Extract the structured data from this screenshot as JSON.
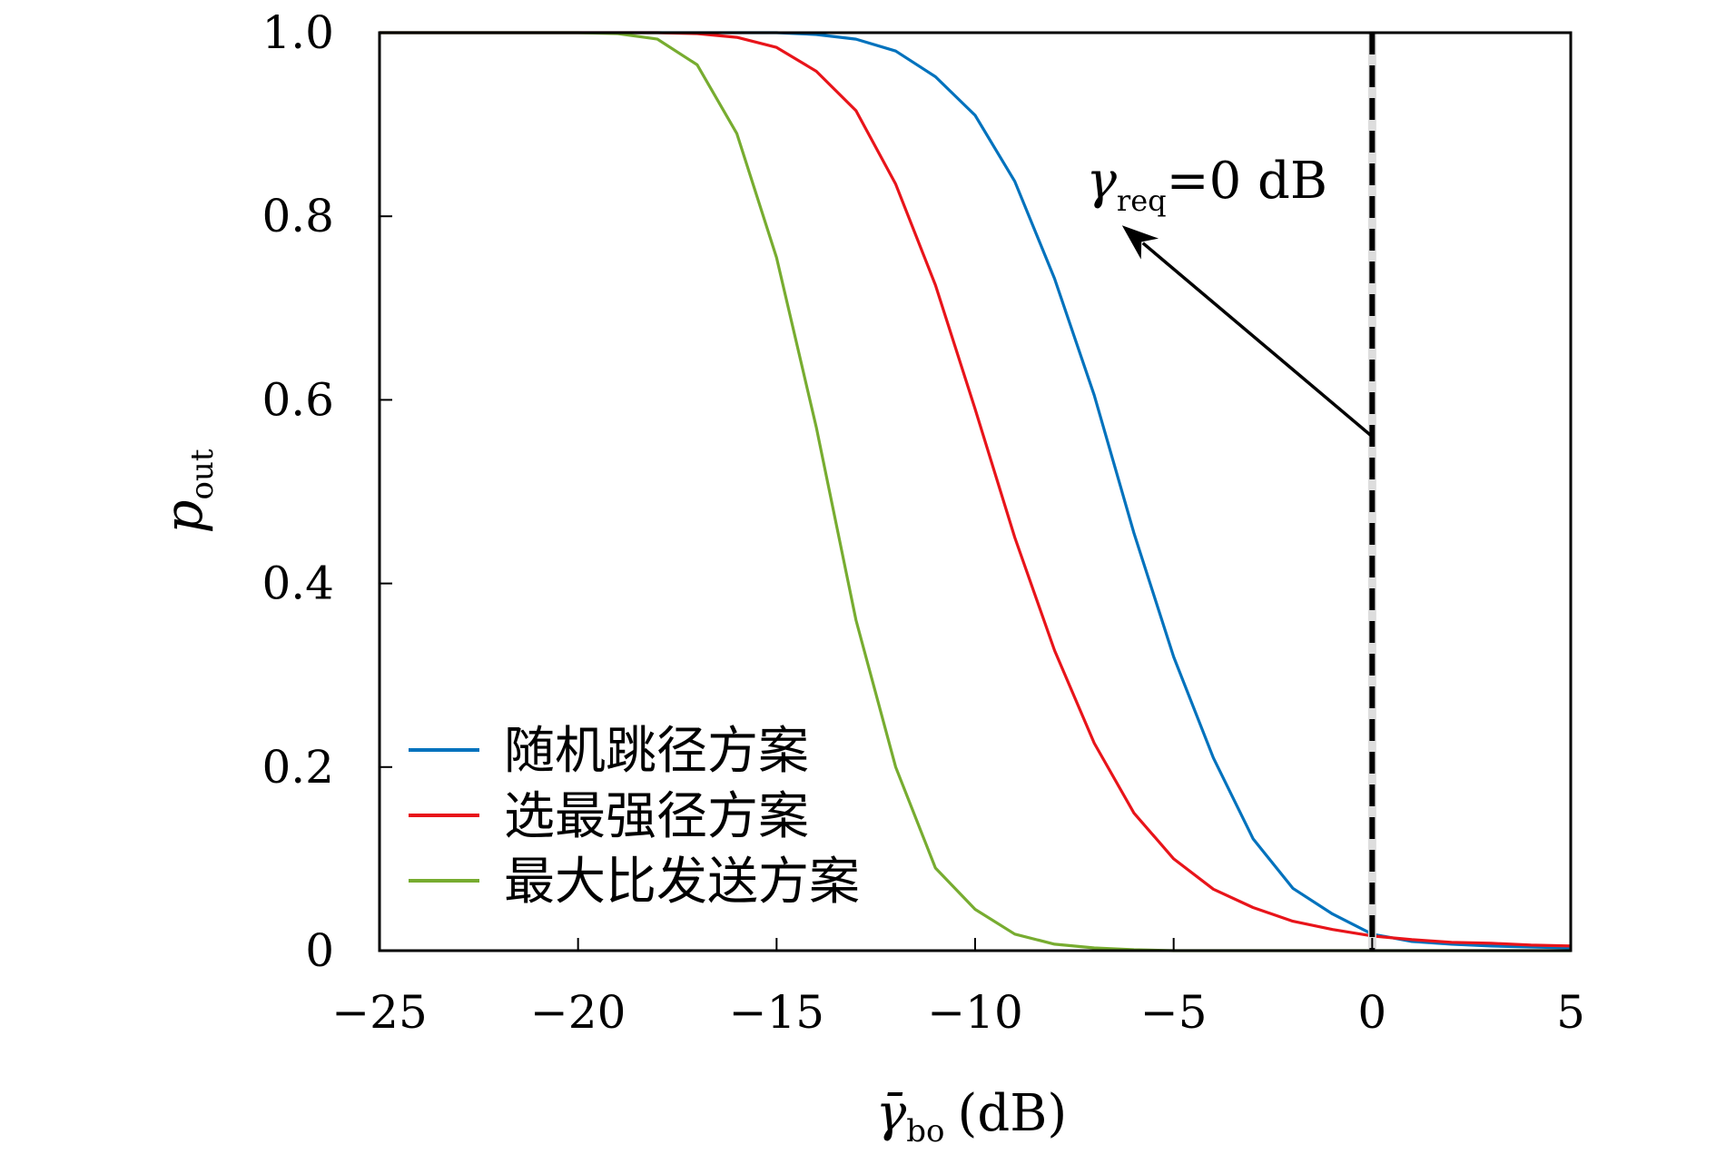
{
  "chart_data": {
    "type": "line",
    "xlabel": {
      "symbol": "γ̄",
      "sub": "bo",
      "unit": "(dB)"
    },
    "ylabel": {
      "symbol": "p",
      "sub": "out"
    },
    "xlim": [
      -25,
      5
    ],
    "ylim": [
      0,
      1
    ],
    "x_ticks": [
      -25,
      -20,
      -15,
      -10,
      -5,
      0,
      5
    ],
    "x_tick_labels": [
      "−25",
      "−20",
      "−15",
      "−10",
      "−5",
      "0",
      "5"
    ],
    "y_ticks": [
      0,
      0.2,
      0.4,
      0.6,
      0.8,
      1.0
    ],
    "y_tick_labels": [
      "0",
      "0.2",
      "0.4",
      "0.6",
      "0.8",
      "1.0"
    ],
    "grid": false,
    "legend_position": "bottom-left",
    "x": [
      -25,
      -24,
      -23,
      -22,
      -21,
      -20,
      -19,
      -18,
      -17,
      -16,
      -15,
      -14,
      -13,
      -12,
      -11,
      -10,
      -9,
      -8,
      -7,
      -6,
      -5,
      -4,
      -3,
      -2,
      -1,
      0,
      1,
      2,
      3,
      4,
      5
    ],
    "series": [
      {
        "name": "随机跳径方案",
        "color": "#0072BD",
        "values": [
          1.0,
          1.0,
          1.0,
          1.0,
          1.0,
          1.0,
          1.0,
          1.0,
          1.0,
          1.0,
          1.0,
          0.998,
          0.993,
          0.98,
          0.952,
          0.91,
          0.838,
          0.732,
          0.605,
          0.455,
          0.32,
          0.21,
          0.122,
          0.068,
          0.04,
          0.018,
          0.01,
          0.007,
          0.005,
          0.004,
          0.003
        ]
      },
      {
        "name": "选最强径方案",
        "color": "#E8141A",
        "values": [
          1.0,
          1.0,
          1.0,
          1.0,
          1.0,
          1.0,
          1.0,
          1.0,
          0.999,
          0.995,
          0.984,
          0.958,
          0.915,
          0.835,
          0.725,
          0.59,
          0.45,
          0.327,
          0.226,
          0.15,
          0.1,
          0.067,
          0.047,
          0.032,
          0.023,
          0.016,
          0.012,
          0.009,
          0.008,
          0.006,
          0.005
        ]
      },
      {
        "name": "最大比发送方案",
        "color": "#77AC30",
        "values": [
          1.0,
          1.0,
          1.0,
          1.0,
          1.0,
          1.0,
          0.999,
          0.993,
          0.965,
          0.89,
          0.755,
          0.57,
          0.36,
          0.2,
          0.09,
          0.045,
          0.018,
          0.007,
          0.003,
          0.001,
          0.0,
          0.0,
          0.0,
          0.0,
          0.0,
          0.0,
          0.0,
          0.0,
          0.0,
          0.0,
          0.0
        ]
      }
    ],
    "reference_line": {
      "x": 0,
      "style": "dashed",
      "color": "#000000"
    },
    "annotation": {
      "symbol": "γ",
      "sub": "req",
      "text": "=0 dB",
      "arrow_from": [
        0,
        0.56
      ],
      "arrow_to": [
        -6.3,
        0.79
      ],
      "text_at": [
        -7.2,
        0.82
      ]
    }
  }
}
